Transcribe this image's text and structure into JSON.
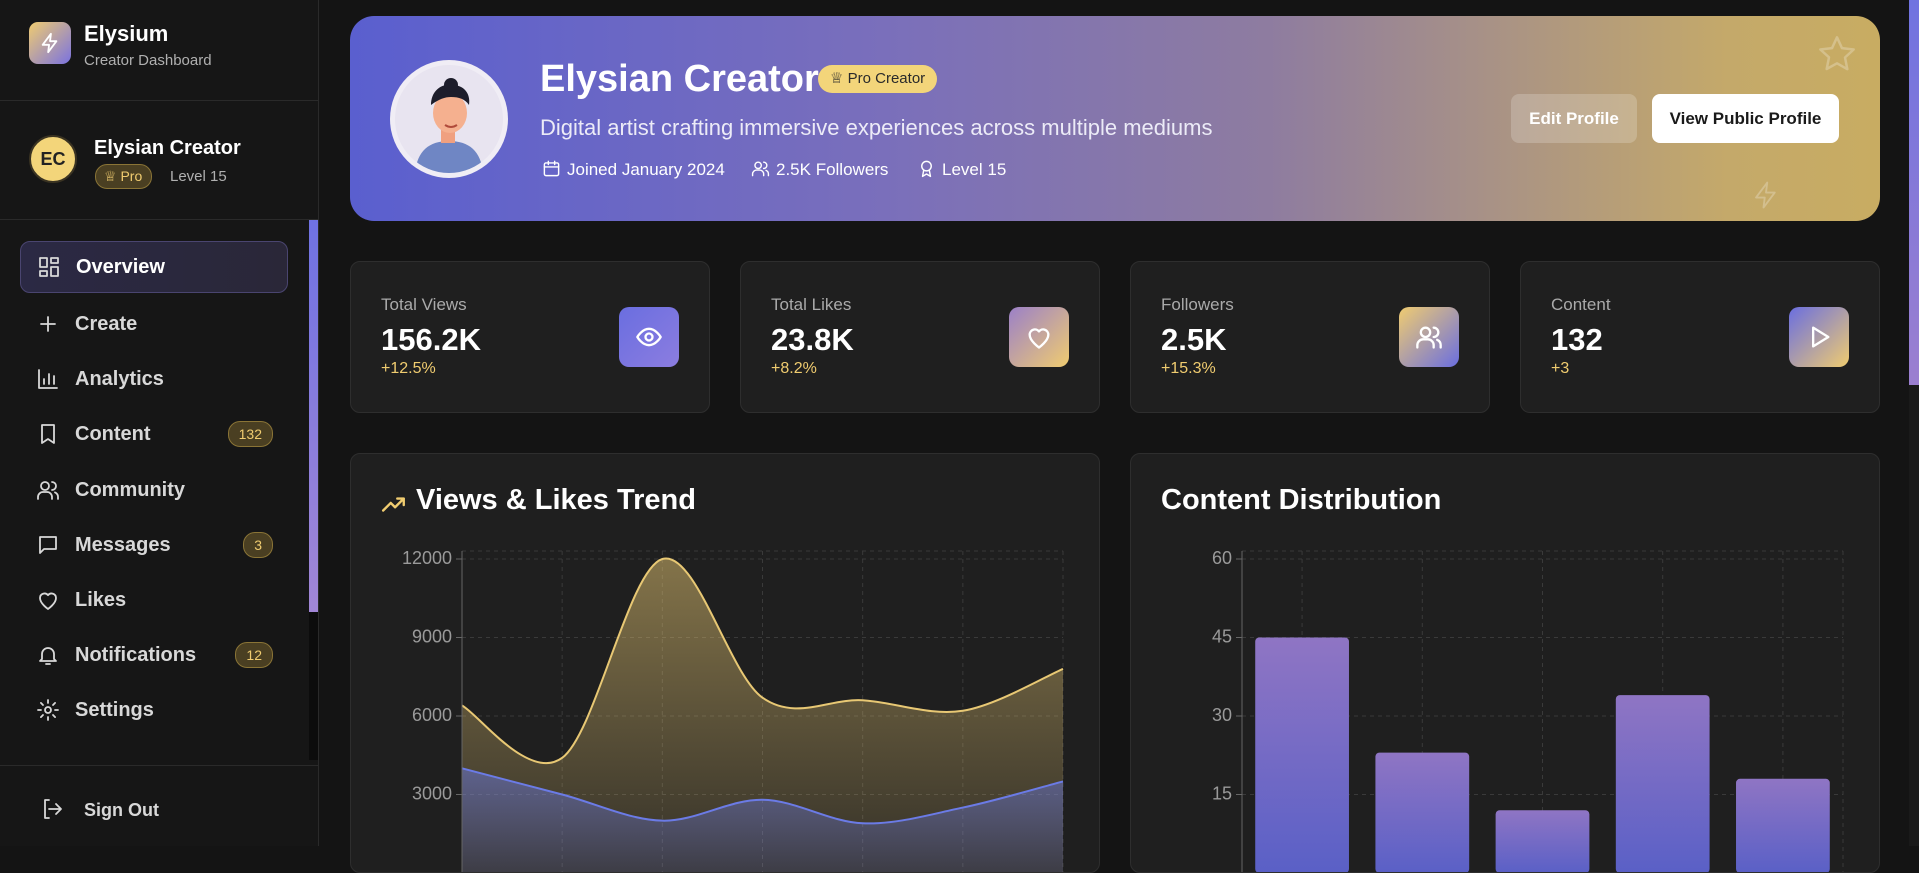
{
  "brand": {
    "name": "Elysium",
    "subtitle": "Creator Dashboard"
  },
  "user": {
    "initials": "EC",
    "name": "Elysian Creator",
    "badge": "Pro",
    "level": "Level 15"
  },
  "nav": [
    {
      "label": "Overview"
    },
    {
      "label": "Create"
    },
    {
      "label": "Analytics"
    },
    {
      "label": "Content",
      "badge": "132"
    },
    {
      "label": "Community"
    },
    {
      "label": "Messages",
      "badge": "3"
    },
    {
      "label": "Likes"
    },
    {
      "label": "Notifications",
      "badge": "12"
    },
    {
      "label": "Settings"
    }
  ],
  "sign_out": "Sign Out",
  "profile": {
    "name": "Elysian Creator",
    "badge": "Pro Creator",
    "bio": "Digital artist crafting immersive experiences across multiple mediums",
    "joined": "Joined January 2024",
    "followers": "2.5K Followers",
    "level": "Level 15",
    "buttons": [
      "Edit Profile",
      "View Public Profile"
    ]
  },
  "stats": [
    {
      "label": "Total Views",
      "value": "156.2K",
      "change": "+12.5%"
    },
    {
      "label": "Total Likes",
      "value": "23.8K",
      "change": "+8.2%"
    },
    {
      "label": "Followers",
      "value": "2.5K",
      "change": "+15.3%"
    },
    {
      "label": "Content",
      "value": "132",
      "change": "+3"
    }
  ],
  "chart_data": [
    {
      "type": "area",
      "title": "Views & Likes Trend",
      "categories": [
        null,
        null,
        null,
        null,
        null,
        null,
        null
      ],
      "series": [
        {
          "color": "#e8c874",
          "values": [
            6400,
            4400,
            12000,
            6700,
            6600,
            6200,
            7800
          ]
        },
        {
          "color": "#6b7be6",
          "values": [
            4000,
            3000,
            2000,
            2800,
            1900,
            2500,
            3500
          ]
        }
      ],
      "ylim": [
        0,
        12000
      ],
      "yticks": [
        3000,
        6000,
        9000,
        12000
      ],
      "grid": true
    },
    {
      "type": "bar",
      "title": "Content Distribution",
      "categories": [
        null,
        null,
        null,
        null,
        null
      ],
      "values": [
        45,
        23,
        12,
        34,
        18
      ],
      "color": "#8f75c4",
      "ylim": [
        0,
        60
      ],
      "yticks": [
        15,
        30,
        45,
        60
      ],
      "grid": true
    }
  ]
}
